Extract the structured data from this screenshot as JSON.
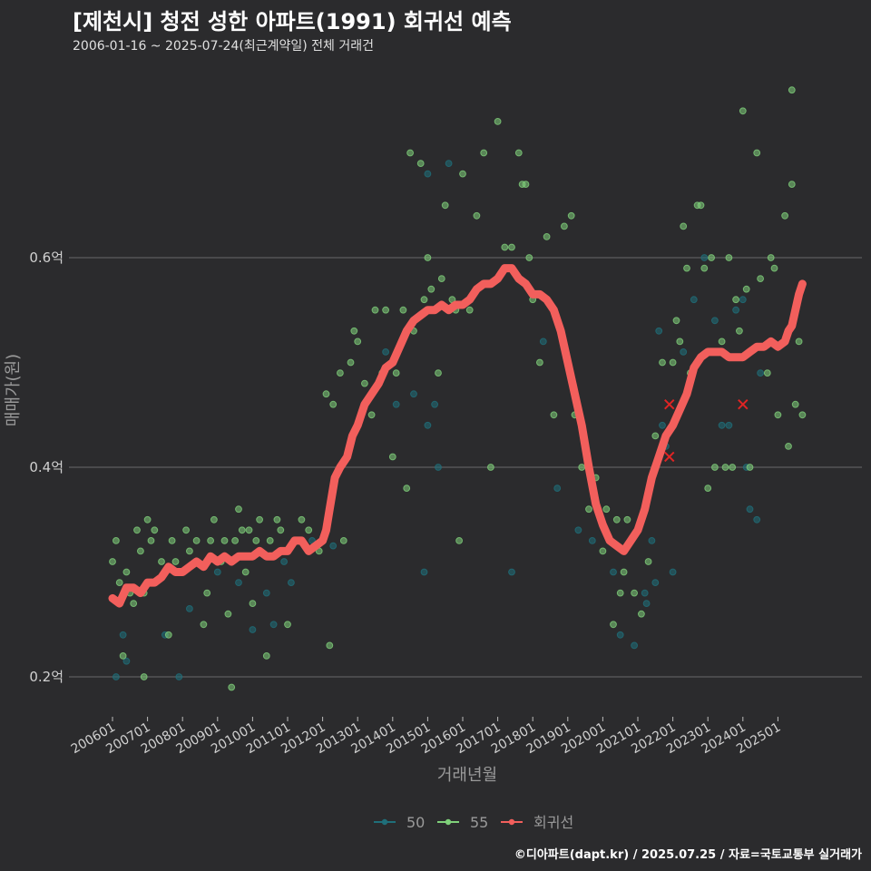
{
  "title": "[제천시] 청전 성한 아파트(1991) 회귀선 예측",
  "subtitle": "2006-01-16 ~ 2025-07-24(최근계약일) 전체 거래건",
  "footer": "©디아파트(dapt.kr) / 2025.07.25 / 자료=국토교통부 실거래가",
  "colors": {
    "background": "#2b2b2d",
    "grid": "#6a6a6a",
    "series_50": "#1f6f7a",
    "series_55": "#7fd07a",
    "regression": "#f25f5c"
  },
  "chart_data": {
    "type": "scatter",
    "title": "[제천시] 청전 성한 아파트(1991) 회귀선 예측",
    "xlabel": "거래년월",
    "ylabel": "매매가(원)",
    "x_range": [
      2005.8,
      2026.2
    ],
    "ylim": [
      0.16,
      0.78
    ],
    "yticks": [
      0.2,
      0.4,
      0.6
    ],
    "ytick_labels": [
      "0.2억",
      "0.4억",
      "0.6억"
    ],
    "xticks": [
      2006,
      2007,
      2008,
      2009,
      2010,
      2011,
      2012,
      2013,
      2014,
      2015,
      2016,
      2017,
      2018,
      2019,
      2020,
      2021,
      2022,
      2023,
      2024,
      2025
    ],
    "xtick_labels": [
      "200601",
      "200701",
      "200801",
      "200901",
      "201001",
      "201101",
      "201201",
      "201301",
      "201401",
      "201501",
      "201601",
      "201701",
      "201801",
      "201901",
      "202001",
      "202101",
      "202201",
      "202301",
      "202401",
      "202501"
    ],
    "grid": true,
    "legend_position": "bottom",
    "legend": [
      {
        "name": "50",
        "color": "#1f6f7a"
      },
      {
        "name": "55",
        "color": "#7fd07a"
      },
      {
        "name": "회귀선",
        "color": "#f25f5c"
      }
    ],
    "series": [
      {
        "name": "50",
        "points": [
          [
            2006.1,
            0.2
          ],
          [
            2006.3,
            0.24
          ],
          [
            2006.4,
            0.215
          ],
          [
            2007.5,
            0.24
          ],
          [
            2007.9,
            0.2
          ],
          [
            2008.2,
            0.265
          ],
          [
            2009.0,
            0.3
          ],
          [
            2009.6,
            0.29
          ],
          [
            2010.0,
            0.245
          ],
          [
            2010.4,
            0.28
          ],
          [
            2010.6,
            0.25
          ],
          [
            2010.9,
            0.31
          ],
          [
            2011.1,
            0.29
          ],
          [
            2011.7,
            0.33
          ],
          [
            2012.3,
            0.325
          ],
          [
            2013.8,
            0.51
          ],
          [
            2014.1,
            0.46
          ],
          [
            2014.6,
            0.47
          ],
          [
            2014.9,
            0.3
          ],
          [
            2015.0,
            0.44
          ],
          [
            2015.3,
            0.4
          ],
          [
            2015.2,
            0.46
          ],
          [
            2015.0,
            0.68
          ],
          [
            2015.6,
            0.69
          ],
          [
            2017.4,
            0.3
          ],
          [
            2018.3,
            0.52
          ],
          [
            2018.7,
            0.38
          ],
          [
            2019.3,
            0.34
          ],
          [
            2019.7,
            0.33
          ],
          [
            2020.3,
            0.3
          ],
          [
            2020.5,
            0.24
          ],
          [
            2020.9,
            0.23
          ],
          [
            2021.2,
            0.28
          ],
          [
            2021.25,
            0.27
          ],
          [
            2021.4,
            0.33
          ],
          [
            2021.5,
            0.29
          ],
          [
            2021.6,
            0.53
          ],
          [
            2021.7,
            0.44
          ],
          [
            2021.8,
            0.42
          ],
          [
            2022.0,
            0.3
          ],
          [
            2022.3,
            0.51
          ],
          [
            2022.6,
            0.56
          ],
          [
            2022.9,
            0.6
          ],
          [
            2023.2,
            0.54
          ],
          [
            2023.4,
            0.44
          ],
          [
            2023.6,
            0.44
          ],
          [
            2023.8,
            0.55
          ],
          [
            2024.0,
            0.56
          ],
          [
            2024.1,
            0.4
          ],
          [
            2024.2,
            0.36
          ],
          [
            2024.4,
            0.35
          ],
          [
            2024.5,
            0.49
          ]
        ]
      },
      {
        "name": "55",
        "points": [
          [
            2006.0,
            0.31
          ],
          [
            2006.1,
            0.33
          ],
          [
            2006.2,
            0.29
          ],
          [
            2006.3,
            0.22
          ],
          [
            2006.4,
            0.3
          ],
          [
            2006.5,
            0.28
          ],
          [
            2006.6,
            0.27
          ],
          [
            2006.7,
            0.34
          ],
          [
            2006.8,
            0.32
          ],
          [
            2006.9,
            0.28
          ],
          [
            2007.0,
            0.35
          ],
          [
            2007.1,
            0.33
          ],
          [
            2007.2,
            0.34
          ],
          [
            2006.9,
            0.2
          ],
          [
            2007.4,
            0.31
          ],
          [
            2007.6,
            0.24
          ],
          [
            2007.7,
            0.33
          ],
          [
            2007.8,
            0.31
          ],
          [
            2008.0,
            0.3
          ],
          [
            2008.1,
            0.34
          ],
          [
            2008.2,
            0.32
          ],
          [
            2008.4,
            0.33
          ],
          [
            2008.6,
            0.25
          ],
          [
            2008.7,
            0.28
          ],
          [
            2008.8,
            0.33
          ],
          [
            2008.9,
            0.35
          ],
          [
            2009.1,
            0.31
          ],
          [
            2009.2,
            0.33
          ],
          [
            2009.3,
            0.26
          ],
          [
            2009.4,
            0.19
          ],
          [
            2009.5,
            0.33
          ],
          [
            2009.6,
            0.36
          ],
          [
            2009.7,
            0.34
          ],
          [
            2009.8,
            0.3
          ],
          [
            2009.9,
            0.34
          ],
          [
            2010.0,
            0.27
          ],
          [
            2010.1,
            0.33
          ],
          [
            2010.2,
            0.35
          ],
          [
            2010.4,
            0.22
          ],
          [
            2010.5,
            0.33
          ],
          [
            2010.7,
            0.35
          ],
          [
            2010.8,
            0.34
          ],
          [
            2011.0,
            0.25
          ],
          [
            2011.2,
            0.33
          ],
          [
            2011.4,
            0.35
          ],
          [
            2011.6,
            0.34
          ],
          [
            2011.9,
            0.32
          ],
          [
            2012.1,
            0.47
          ],
          [
            2012.2,
            0.23
          ],
          [
            2012.3,
            0.46
          ],
          [
            2012.5,
            0.49
          ],
          [
            2012.6,
            0.33
          ],
          [
            2012.8,
            0.5
          ],
          [
            2012.9,
            0.53
          ],
          [
            2013.0,
            0.52
          ],
          [
            2013.2,
            0.48
          ],
          [
            2013.4,
            0.45
          ],
          [
            2013.5,
            0.55
          ],
          [
            2013.7,
            0.49
          ],
          [
            2013.8,
            0.55
          ],
          [
            2014.0,
            0.41
          ],
          [
            2014.1,
            0.49
          ],
          [
            2014.3,
            0.55
          ],
          [
            2014.4,
            0.38
          ],
          [
            2014.5,
            0.7
          ],
          [
            2014.6,
            0.53
          ],
          [
            2014.8,
            0.69
          ],
          [
            2014.9,
            0.56
          ],
          [
            2015.0,
            0.6
          ],
          [
            2015.1,
            0.57
          ],
          [
            2015.3,
            0.49
          ],
          [
            2015.4,
            0.58
          ],
          [
            2015.5,
            0.65
          ],
          [
            2015.7,
            0.56
          ],
          [
            2015.8,
            0.55
          ],
          [
            2015.9,
            0.33
          ],
          [
            2016.0,
            0.68
          ],
          [
            2016.2,
            0.55
          ],
          [
            2016.4,
            0.64
          ],
          [
            2016.6,
            0.7
          ],
          [
            2016.8,
            0.4
          ],
          [
            2017.0,
            0.73
          ],
          [
            2017.2,
            0.61
          ],
          [
            2017.4,
            0.61
          ],
          [
            2017.6,
            0.7
          ],
          [
            2017.7,
            0.67
          ],
          [
            2017.8,
            0.67
          ],
          [
            2017.9,
            0.6
          ],
          [
            2018.0,
            0.56
          ],
          [
            2018.2,
            0.5
          ],
          [
            2018.4,
            0.62
          ],
          [
            2018.6,
            0.45
          ],
          [
            2018.9,
            0.63
          ],
          [
            2019.1,
            0.64
          ],
          [
            2019.2,
            0.45
          ],
          [
            2019.4,
            0.4
          ],
          [
            2019.6,
            0.36
          ],
          [
            2019.8,
            0.39
          ],
          [
            2020.0,
            0.32
          ],
          [
            2020.1,
            0.36
          ],
          [
            2020.3,
            0.25
          ],
          [
            2020.4,
            0.35
          ],
          [
            2020.5,
            0.28
          ],
          [
            2020.6,
            0.3
          ],
          [
            2020.7,
            0.35
          ],
          [
            2020.9,
            0.28
          ],
          [
            2021.1,
            0.26
          ],
          [
            2021.3,
            0.31
          ],
          [
            2021.5,
            0.43
          ],
          [
            2021.7,
            0.5
          ],
          [
            2021.8,
            0.43
          ],
          [
            2022.0,
            0.5
          ],
          [
            2022.1,
            0.54
          ],
          [
            2022.2,
            0.52
          ],
          [
            2022.3,
            0.63
          ],
          [
            2022.4,
            0.59
          ],
          [
            2022.5,
            0.49
          ],
          [
            2022.7,
            0.65
          ],
          [
            2022.8,
            0.65
          ],
          [
            2022.9,
            0.59
          ],
          [
            2023.0,
            0.38
          ],
          [
            2023.1,
            0.6
          ],
          [
            2023.2,
            0.4
          ],
          [
            2023.4,
            0.52
          ],
          [
            2023.5,
            0.4
          ],
          [
            2023.6,
            0.6
          ],
          [
            2023.7,
            0.4
          ],
          [
            2023.8,
            0.56
          ],
          [
            2023.9,
            0.53
          ],
          [
            2024.0,
            0.74
          ],
          [
            2024.1,
            0.57
          ],
          [
            2024.2,
            0.4
          ],
          [
            2024.4,
            0.7
          ],
          [
            2024.5,
            0.58
          ],
          [
            2024.7,
            0.49
          ],
          [
            2024.8,
            0.6
          ],
          [
            2024.9,
            0.59
          ],
          [
            2025.0,
            0.45
          ],
          [
            2025.2,
            0.64
          ],
          [
            2025.3,
            0.42
          ],
          [
            2025.4,
            0.67
          ],
          [
            2025.5,
            0.46
          ],
          [
            2025.4,
            0.76
          ],
          [
            2025.6,
            0.52
          ],
          [
            2025.7,
            0.45
          ]
        ]
      }
    ],
    "regression": {
      "name": "회귀선",
      "points": [
        [
          2006.0,
          0.275
        ],
        [
          2006.2,
          0.27
        ],
        [
          2006.4,
          0.285
        ],
        [
          2006.6,
          0.285
        ],
        [
          2006.8,
          0.28
        ],
        [
          2007.0,
          0.29
        ],
        [
          2007.2,
          0.29
        ],
        [
          2007.4,
          0.295
        ],
        [
          2007.6,
          0.305
        ],
        [
          2007.8,
          0.3
        ],
        [
          2008.0,
          0.3
        ],
        [
          2008.2,
          0.305
        ],
        [
          2008.4,
          0.31
        ],
        [
          2008.6,
          0.305
        ],
        [
          2008.8,
          0.315
        ],
        [
          2009.0,
          0.31
        ],
        [
          2009.2,
          0.315
        ],
        [
          2009.4,
          0.31
        ],
        [
          2009.6,
          0.315
        ],
        [
          2009.8,
          0.315
        ],
        [
          2010.0,
          0.315
        ],
        [
          2010.2,
          0.32
        ],
        [
          2010.4,
          0.315
        ],
        [
          2010.6,
          0.315
        ],
        [
          2010.8,
          0.32
        ],
        [
          2011.0,
          0.32
        ],
        [
          2011.2,
          0.33
        ],
        [
          2011.4,
          0.33
        ],
        [
          2011.6,
          0.32
        ],
        [
          2011.8,
          0.325
        ],
        [
          2012.0,
          0.33
        ],
        [
          2012.1,
          0.34
        ],
        [
          2012.2,
          0.36
        ],
        [
          2012.35,
          0.39
        ],
        [
          2012.5,
          0.4
        ],
        [
          2012.7,
          0.41
        ],
        [
          2012.85,
          0.43
        ],
        [
          2013.0,
          0.44
        ],
        [
          2013.2,
          0.46
        ],
        [
          2013.4,
          0.47
        ],
        [
          2013.6,
          0.48
        ],
        [
          2013.8,
          0.495
        ],
        [
          2014.0,
          0.5
        ],
        [
          2014.2,
          0.515
        ],
        [
          2014.4,
          0.53
        ],
        [
          2014.6,
          0.54
        ],
        [
          2014.8,
          0.545
        ],
        [
          2015.0,
          0.55
        ],
        [
          2015.2,
          0.55
        ],
        [
          2015.4,
          0.555
        ],
        [
          2015.6,
          0.55
        ],
        [
          2015.8,
          0.555
        ],
        [
          2016.0,
          0.555
        ],
        [
          2016.2,
          0.56
        ],
        [
          2016.4,
          0.57
        ],
        [
          2016.6,
          0.575
        ],
        [
          2016.8,
          0.575
        ],
        [
          2017.0,
          0.58
        ],
        [
          2017.2,
          0.59
        ],
        [
          2017.4,
          0.59
        ],
        [
          2017.6,
          0.58
        ],
        [
          2017.8,
          0.575
        ],
        [
          2018.0,
          0.565
        ],
        [
          2018.2,
          0.565
        ],
        [
          2018.4,
          0.56
        ],
        [
          2018.6,
          0.55
        ],
        [
          2018.8,
          0.53
        ],
        [
          2019.0,
          0.5
        ],
        [
          2019.2,
          0.47
        ],
        [
          2019.4,
          0.44
        ],
        [
          2019.6,
          0.4
        ],
        [
          2019.8,
          0.365
        ],
        [
          2020.0,
          0.345
        ],
        [
          2020.2,
          0.33
        ],
        [
          2020.4,
          0.325
        ],
        [
          2020.6,
          0.32
        ],
        [
          2020.8,
          0.33
        ],
        [
          2021.0,
          0.34
        ],
        [
          2021.2,
          0.36
        ],
        [
          2021.4,
          0.39
        ],
        [
          2021.6,
          0.41
        ],
        [
          2021.8,
          0.43
        ],
        [
          2022.0,
          0.44
        ],
        [
          2022.2,
          0.455
        ],
        [
          2022.4,
          0.47
        ],
        [
          2022.6,
          0.495
        ],
        [
          2022.8,
          0.505
        ],
        [
          2023.0,
          0.51
        ],
        [
          2023.2,
          0.51
        ],
        [
          2023.4,
          0.51
        ],
        [
          2023.6,
          0.505
        ],
        [
          2023.8,
          0.505
        ],
        [
          2024.0,
          0.505
        ],
        [
          2024.2,
          0.51
        ],
        [
          2024.4,
          0.515
        ],
        [
          2024.6,
          0.515
        ],
        [
          2024.8,
          0.52
        ],
        [
          2025.0,
          0.515
        ],
        [
          2025.2,
          0.52
        ],
        [
          2025.3,
          0.53
        ],
        [
          2025.4,
          0.535
        ],
        [
          2025.5,
          0.55
        ],
        [
          2025.6,
          0.565
        ],
        [
          2025.7,
          0.575
        ]
      ]
    },
    "markers": [
      [
        2021.9,
        0.46
      ],
      [
        2021.9,
        0.41
      ],
      [
        2024.0,
        0.46
      ]
    ]
  }
}
